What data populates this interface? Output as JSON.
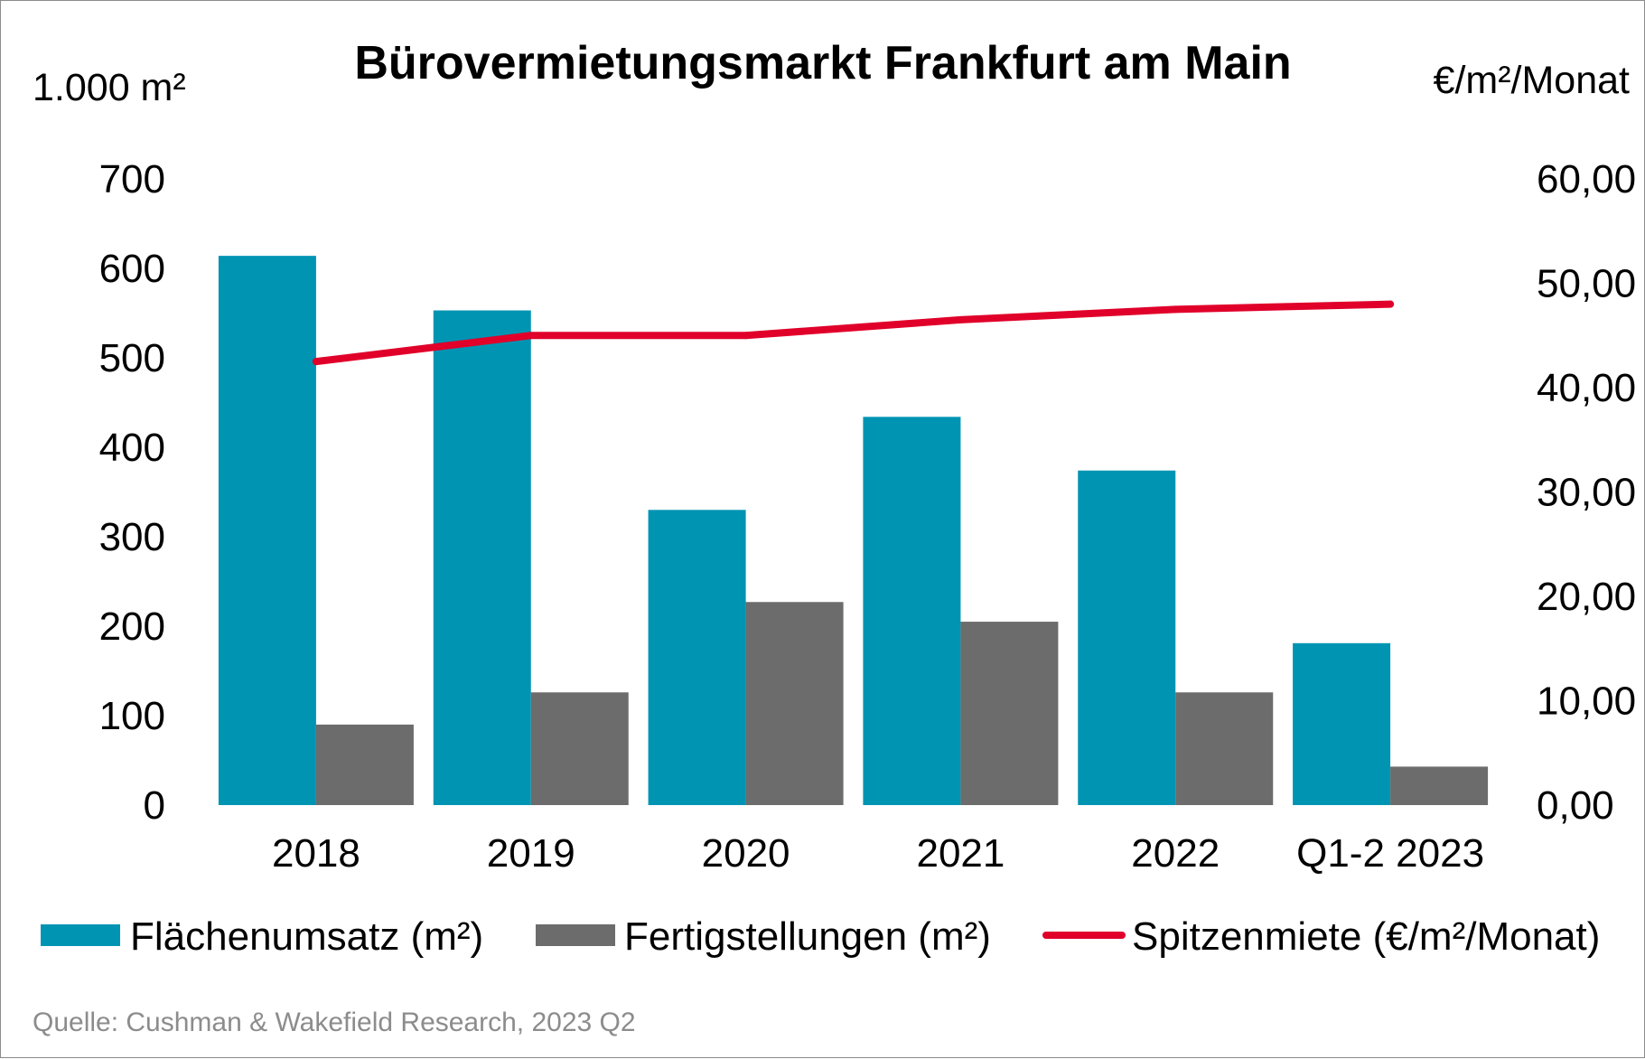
{
  "chart_data": {
    "type": "bar",
    "title": "Bürovermietungsmarkt Frankfurt am Main",
    "ylabel_left": "1.000 m²",
    "ylabel_right": "€/m²/Monat",
    "ylim_left": [
      0,
      700
    ],
    "ylim_right": [
      0,
      60
    ],
    "yticks_left": [
      "0",
      "100",
      "200",
      "300",
      "400",
      "500",
      "600",
      "700"
    ],
    "yticks_right": [
      "0,00",
      "10,00",
      "20,00",
      "30,00",
      "40,00",
      "50,00",
      "60,00"
    ],
    "categories": [
      "2018",
      "2019",
      "2020",
      "2021",
      "2022",
      "Q1-2 2023"
    ],
    "series": [
      {
        "name": "Flächenumsatz (m²)",
        "type": "bar",
        "axis": "left",
        "color": "#0094B3",
        "values": [
          614,
          553,
          330,
          434,
          374,
          181
        ]
      },
      {
        "name": "Fertigstellungen (m²)",
        "type": "bar",
        "axis": "left",
        "color": "#6B6C6B",
        "values": [
          90,
          126,
          227,
          205,
          126,
          43
        ]
      },
      {
        "name": "Spitzenmiete (€/m²/Monat)",
        "type": "line",
        "axis": "right",
        "color": "#E0002A",
        "values": [
          42.5,
          45.0,
          45.0,
          46.5,
          47.5,
          48.0
        ]
      }
    ],
    "legend_position": "bottom",
    "grid": false,
    "source": "Quelle: Cushman & Wakefield Research, 2023 Q2"
  }
}
